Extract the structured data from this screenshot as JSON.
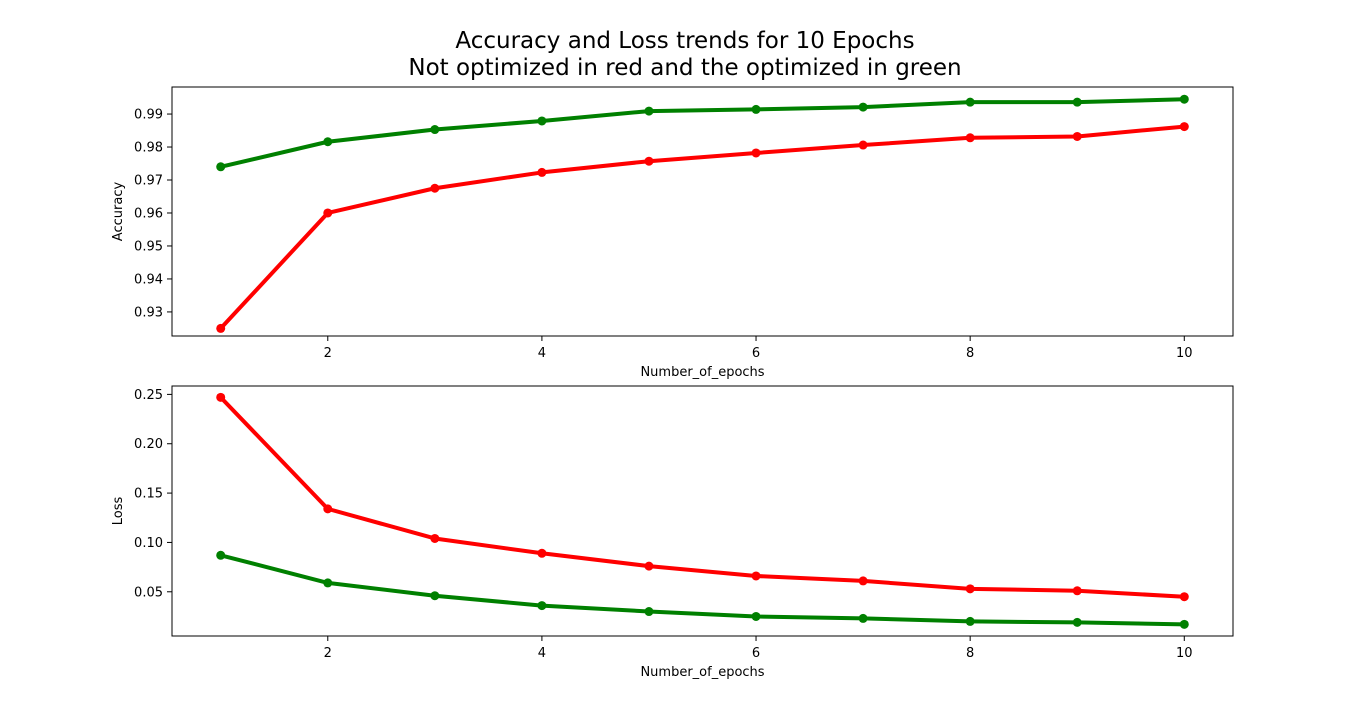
{
  "figure": {
    "title_line1": "Accuracy and Loss trends for 10 Epochs",
    "title_line2": "Not optimized in red and the optimized in green"
  },
  "chart_data": [
    {
      "type": "line",
      "xlabel": "Number_of_epochs",
      "ylabel": "Accuracy",
      "xlim": [
        0.545,
        10.455
      ],
      "ylim": [
        0.9227,
        0.9982
      ],
      "xticks": [
        2,
        4,
        6,
        8,
        10
      ],
      "xtick_labels": [
        "2",
        "4",
        "6",
        "8",
        "10"
      ],
      "yticks": [
        0.93,
        0.94,
        0.95,
        0.96,
        0.97,
        0.98,
        0.99
      ],
      "ytick_labels": [
        "0.93",
        "0.94",
        "0.95",
        "0.96",
        "0.97",
        "0.98",
        "0.99"
      ],
      "grid": false,
      "x": [
        1,
        2,
        3,
        4,
        5,
        6,
        7,
        8,
        9,
        10
      ],
      "series": [
        {
          "color": "#ff0000",
          "values": [
            0.925,
            0.96,
            0.9675,
            0.9723,
            0.9757,
            0.9782,
            0.9806,
            0.9828,
            0.9832,
            0.9862
          ]
        },
        {
          "color": "#008000",
          "values": [
            0.974,
            0.9816,
            0.9853,
            0.9879,
            0.9909,
            0.9914,
            0.9921,
            0.9936,
            0.9936,
            0.9945
          ]
        }
      ]
    },
    {
      "type": "line",
      "xlabel": "Number_of_epochs",
      "ylabel": "Loss",
      "xlim": [
        0.545,
        10.455
      ],
      "ylim": [
        0.0052,
        0.2585
      ],
      "xticks": [
        2,
        4,
        6,
        8,
        10
      ],
      "xtick_labels": [
        "2",
        "4",
        "6",
        "8",
        "10"
      ],
      "yticks": [
        0.05,
        0.1,
        0.15,
        0.2,
        0.25
      ],
      "ytick_labels": [
        "0.05",
        "0.10",
        "0.15",
        "0.20",
        "0.25"
      ],
      "grid": false,
      "x": [
        1,
        2,
        3,
        4,
        5,
        6,
        7,
        8,
        9,
        10
      ],
      "series": [
        {
          "color": "#ff0000",
          "values": [
            0.247,
            0.134,
            0.104,
            0.089,
            0.076,
            0.066,
            0.061,
            0.053,
            0.051,
            0.045
          ]
        },
        {
          "color": "#008000",
          "values": [
            0.087,
            0.059,
            0.046,
            0.036,
            0.03,
            0.025,
            0.023,
            0.02,
            0.019,
            0.017
          ]
        }
      ]
    }
  ]
}
